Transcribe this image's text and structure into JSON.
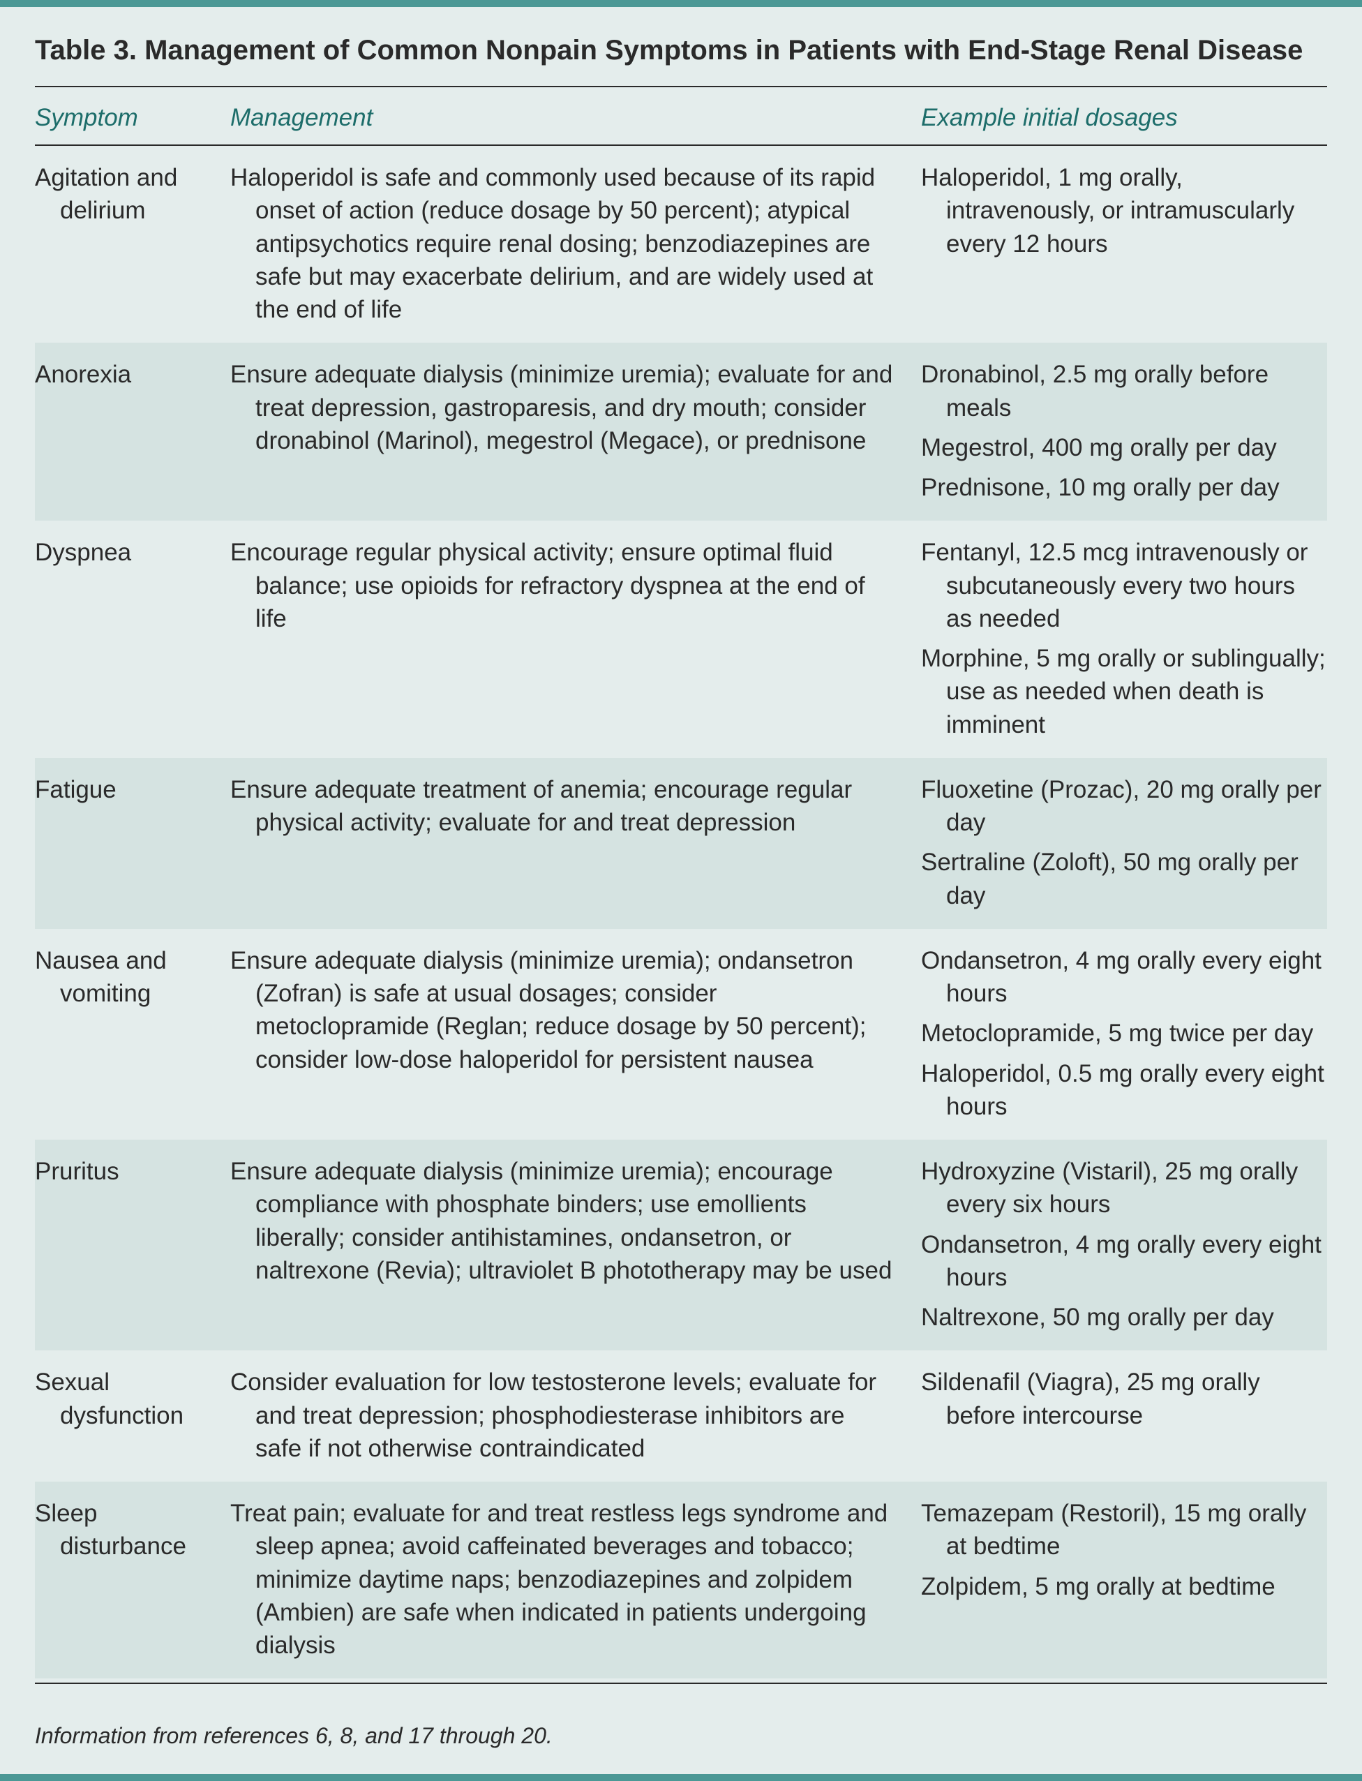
{
  "colors": {
    "accent_bar": "#4b9895",
    "background": "#e4edec",
    "stripe": "#d5e3e1",
    "header_text": "#1d6d6a",
    "body_text": "#2a2a2a",
    "rule": "#2a2a2a"
  },
  "typography": {
    "title_fontsize": 40,
    "header_fontsize": 35,
    "body_fontsize": 35,
    "footer_fontsize": 32
  },
  "table": {
    "title": "Table 3. Management of Common Nonpain Symptoms in Patients with End-Stage Renal Disease",
    "columns": [
      "Symptom",
      "Management",
      "Example initial dosages"
    ],
    "rows": [
      {
        "symptom": "Agitation and delirium",
        "management": "Haloperidol is safe and commonly used because of its rapid onset of action (reduce dosage by 50 percent); atypical antipsychotics require renal dosing; benzodiazepines are safe but may exacerbate delirium, and are widely used at the end of life",
        "dosages": [
          "Haloperidol, 1 mg orally, intravenously, or intramuscularly every 12 hours"
        ]
      },
      {
        "symptom": "Anorexia",
        "management": "Ensure adequate dialysis (minimize uremia); evaluate for and treat depression, gastroparesis, and dry mouth; consider dronabinol (Marinol), megestrol (Megace), or prednisone",
        "dosages": [
          "Dronabinol, 2.5 mg orally before meals",
          "Megestrol, 400 mg orally per day",
          "Prednisone, 10 mg orally per day"
        ]
      },
      {
        "symptom": "Dyspnea",
        "management": "Encourage regular physical activity; ensure optimal fluid balance; use opioids for refractory dyspnea at the end of life",
        "dosages": [
          "Fentanyl, 12.5 mcg intravenously or subcutaneously every two hours as needed",
          "Morphine, 5 mg orally or sublingually; use as needed when death is imminent"
        ]
      },
      {
        "symptom": "Fatigue",
        "management": "Ensure adequate treatment of anemia; encourage regular physical activity; evaluate for and treat depression",
        "dosages": [
          "Fluoxetine (Prozac), 20 mg orally per day",
          "Sertraline (Zoloft), 50 mg orally per day"
        ]
      },
      {
        "symptom": "Nausea and vomiting",
        "management": "Ensure adequate dialysis (minimize uremia); ondansetron (Zofran) is safe at usual dosages; consider metoclopramide (Reglan; reduce dosage by 50 percent); consider low-dose haloperidol for persistent nausea",
        "dosages": [
          "Ondansetron, 4 mg orally every eight hours",
          "Metoclopramide, 5 mg twice per day",
          "Haloperidol, 0.5 mg orally every eight hours"
        ]
      },
      {
        "symptom": "Pruritus",
        "management": "Ensure adequate dialysis (minimize uremia); encourage compliance with phosphate binders; use emollients liberally; consider antihistamines, ondansetron, or naltrexone (Revia); ultraviolet B phototherapy may be used",
        "dosages": [
          "Hydroxyzine (Vistaril), 25 mg orally every six hours",
          "Ondansetron, 4 mg orally every eight hours",
          "Naltrexone, 50 mg orally per day"
        ]
      },
      {
        "symptom": "Sexual dysfunction",
        "management": "Consider evaluation for low testosterone levels; evaluate for and treat depression; phosphodiesterase inhibitors are safe if not otherwise contraindicated",
        "dosages": [
          "Sildenafil (Viagra), 25 mg orally before intercourse"
        ]
      },
      {
        "symptom": "Sleep disturbance",
        "management": "Treat pain; evaluate for and treat restless legs syndrome and sleep apnea; avoid caffeinated beverages and tobacco; minimize daytime naps; benzodiazepines and zolpidem (Ambien) are safe when indicated in patients undergoing dialysis",
        "dosages": [
          "Temazepam (Restoril), 15 mg orally at bedtime",
          "Zolpidem, 5 mg orally at bedtime"
        ]
      }
    ],
    "footer": "Information from references 6, 8, and 17 through 20."
  }
}
